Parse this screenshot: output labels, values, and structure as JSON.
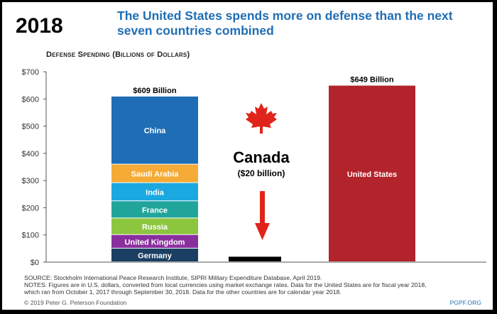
{
  "page": {
    "year": "2018",
    "headline": "The United States spends more on defense than the next seven countries combined",
    "subtitle": "Defense Spending (Billions of Dollars)",
    "source_line": "SOURCE: Stockholm International Peace Research Institute, SIPRI Military Expenditure Database, April 2019.",
    "notes_line_1": "NOTES: Figures are in U.S. dollars, converted from local currencies using market exchange rates. Data for the United States are for fiscal year 2018,",
    "notes_line_2": "which ran from October 1, 2017 through September 30, 2018. Data for the other countries are for calendar year 2018.",
    "copyright": "© 2019 Peter G. Peterson Foundation",
    "brand": "PGPF.ORG"
  },
  "chart_data": {
    "type": "bar",
    "title": "Defense Spending (Billions of Dollars)",
    "ylim": [
      0,
      700
    ],
    "yticks": [
      0,
      100,
      200,
      300,
      400,
      500,
      600,
      700
    ],
    "ytick_labels": [
      "$0",
      "$100",
      "$200",
      "$300",
      "$400",
      "$500",
      "$600",
      "$700"
    ],
    "grid": false,
    "stacked_bar": {
      "total_label": "$609 Billion",
      "segments": [
        {
          "name": "Germany",
          "value": 50,
          "color": "#1b3f63"
        },
        {
          "name": "United Kingdom",
          "value": 50,
          "color": "#8a2f9e"
        },
        {
          "name": "Russia",
          "value": 61,
          "color": "#8cc63f"
        },
        {
          "name": "France",
          "value": 63,
          "color": "#21a59a"
        },
        {
          "name": "India",
          "value": 67,
          "color": "#1aa8e0"
        },
        {
          "name": "Saudi Arabia",
          "value": 68,
          "color": "#f5ab35"
        },
        {
          "name": "China",
          "value": 250,
          "color": "#1f6eb5"
        }
      ]
    },
    "canada_bar": {
      "name": "Canada",
      "value": 20,
      "color": "#000000",
      "label": "Canada",
      "sublabel": "($20 billion)"
    },
    "us_bar": {
      "name": "United States",
      "value": 649,
      "color": "#b3232b",
      "total_label": "$649 Billion"
    },
    "annotations": {
      "maple_leaf_color": "#e0241b",
      "arrow_color": "#e0241b"
    }
  }
}
